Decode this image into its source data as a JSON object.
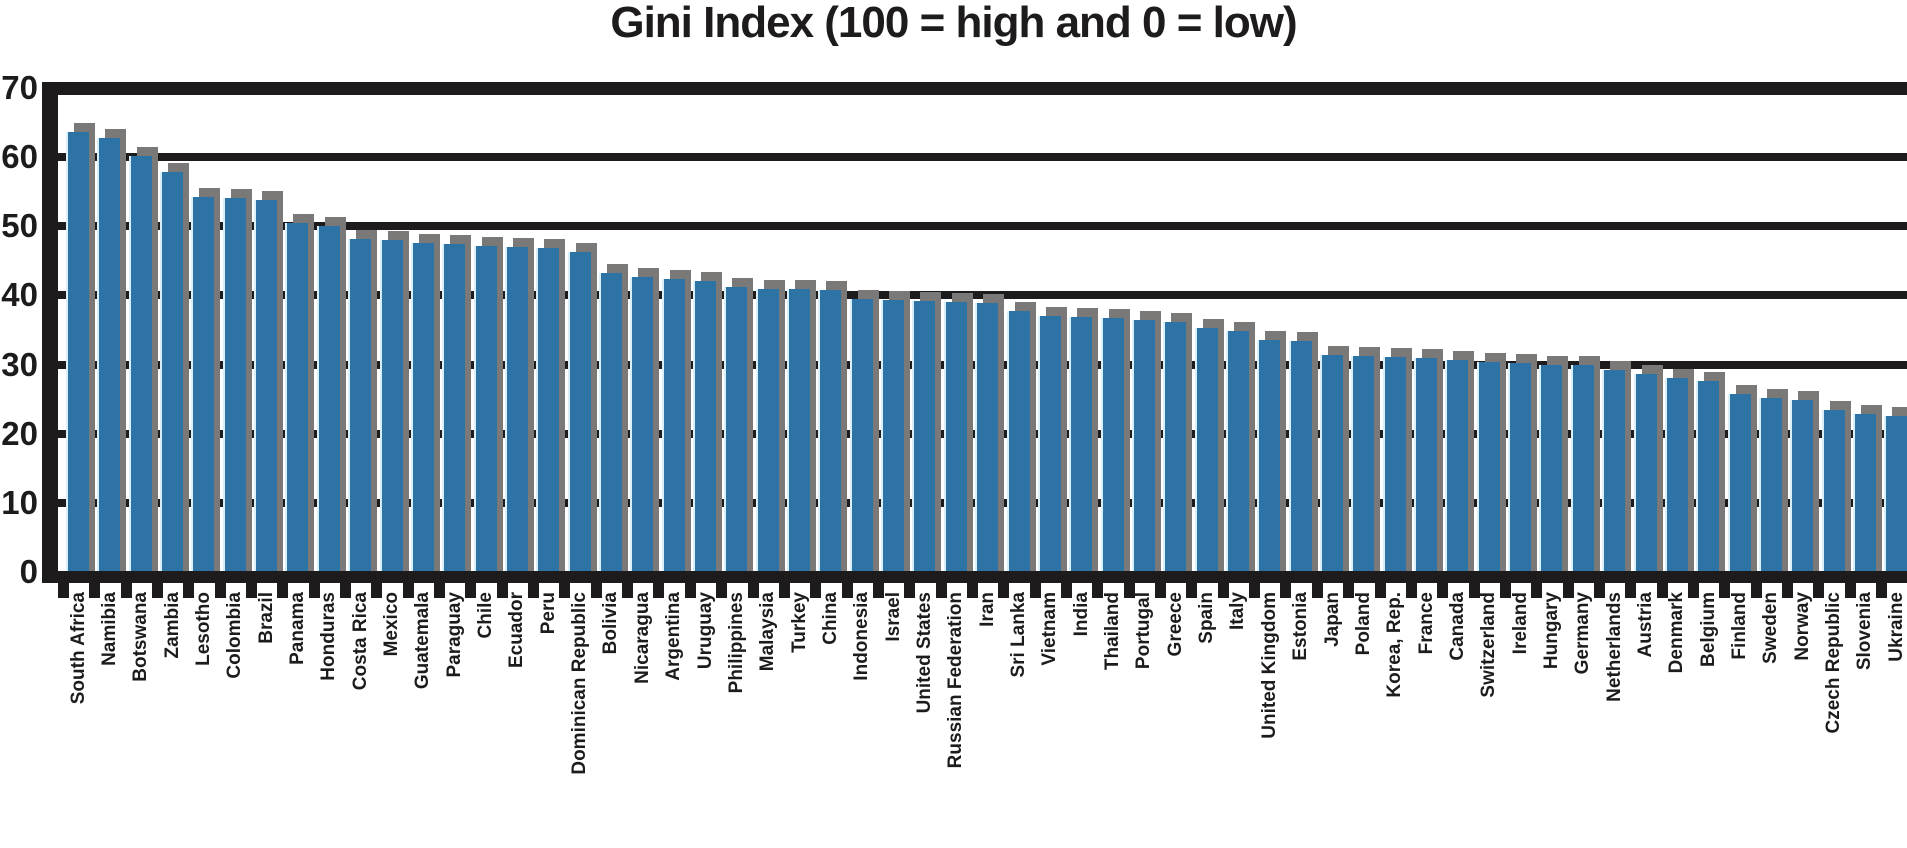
{
  "title": "Gini Index (100 = high and 0 = low)",
  "chart_data": {
    "type": "bar",
    "title": "Gini Index (100 = high and 0 = low)",
    "xlabel": "",
    "ylabel": "",
    "ylim": [
      0,
      70
    ],
    "yticks": [
      0,
      10,
      20,
      30,
      40,
      50,
      60,
      70
    ],
    "grid": true,
    "legend": "none",
    "bar_color": "#2e73a5",
    "shadow_color": "#7b7878",
    "axis_color": "#1e1b1c",
    "categories": [
      "South Africa",
      "Namibia",
      "Botswana",
      "Zambia",
      "Lesotho",
      "Colombia",
      "Brazil",
      "Panama",
      "Honduras",
      "Costa Rica",
      "Mexico",
      "Guatemala",
      "Paraguay",
      "Chile",
      "Ecuador",
      "Peru",
      "Dominican Republic",
      "Bolivia",
      "Nicaragua",
      "Argentina",
      "Uruguay",
      "Philippines",
      "Malaysia",
      "Turkey",
      "China",
      "Indonesia",
      "Israel",
      "United States",
      "Russian Federation",
      "Iran",
      "Sri Lanka",
      "Vietnam",
      "India",
      "Thailand",
      "Portugal",
      "Greece",
      "Spain",
      "Italy",
      "United Kingdom",
      "Estonia",
      "Japan",
      "Poland",
      "Korea, Rep.",
      "France",
      "Canada",
      "Switzerland",
      "Ireland",
      "Hungary",
      "Germany",
      "Netherlands",
      "Austria",
      "Denmark",
      "Belgium",
      "Finland",
      "Sweden",
      "Norway",
      "Czech Republic",
      "Slovenia",
      "Ukraine"
    ],
    "values": [
      63.7,
      62.8,
      60.1,
      57.9,
      54.2,
      54.1,
      53.8,
      50.5,
      50.1,
      48.2,
      48.0,
      47.6,
      47.4,
      47.2,
      47.0,
      46.8,
      46.3,
      43.3,
      42.7,
      42.4,
      42.1,
      41.2,
      41.0,
      40.9,
      40.8,
      39.5,
      39.4,
      39.2,
      39.1,
      38.9,
      37.8,
      37.0,
      36.9,
      36.7,
      36.4,
      36.2,
      35.3,
      34.8,
      33.6,
      33.4,
      31.4,
      31.2,
      31.1,
      30.9,
      30.7,
      30.4,
      30.2,
      30.0,
      29.9,
      29.2,
      28.6,
      28.0,
      27.6,
      25.7,
      25.2,
      24.9,
      23.5,
      22.9,
      22.5
    ]
  }
}
